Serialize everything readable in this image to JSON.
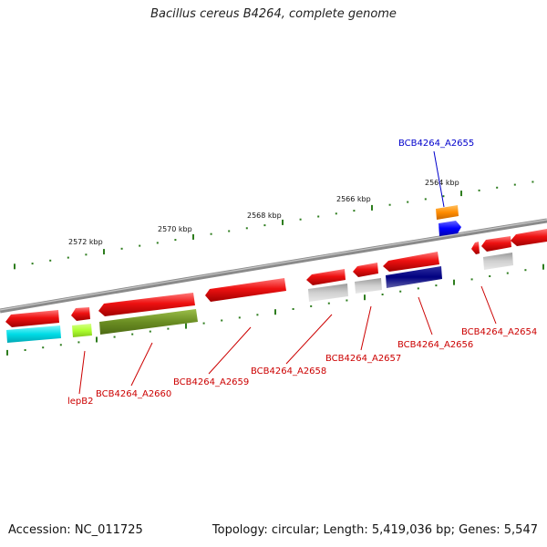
{
  "title": "Bacillus cereus B4264, complete genome",
  "footer": {
    "accession": "Accession: NC_011725",
    "summary": "Topology: circular; Length: 5,419,036 bp; Genes: 5,547"
  },
  "ruler_labels": [
    "2572 kbp",
    "2570 kbp",
    "2568 kbp",
    "2566 kbp",
    "2564 kbp"
  ],
  "gene_labels": [
    "BCB4264_A2655",
    "BCB4264_A2654",
    "BCB4264_A2656",
    "BCB4264_A2657",
    "BCB4264_A2658",
    "BCB4264_A2659",
    "BCB4264_A2660",
    "lepB2"
  ],
  "colors": {
    "backbone": "#8a8a8a",
    "ruler_ticks": "#2e7d1e",
    "cds": "#ee1111",
    "other": "#bdbdbd",
    "olive": "#6b8e23",
    "cyan": "#00e5ee",
    "lime": "#adff2f",
    "navy": "#000080",
    "orange": "#ff8c00",
    "blue": "#0000ff",
    "label_red": "#cc0000",
    "label_blue": "#0000cc"
  }
}
